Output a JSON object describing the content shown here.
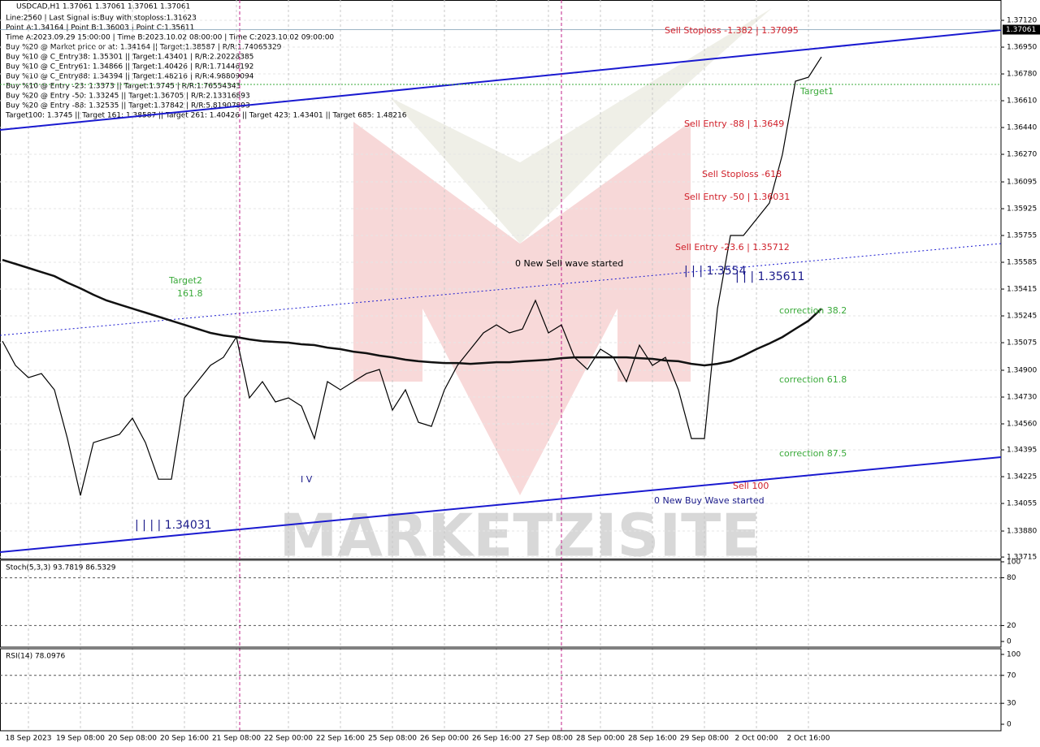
{
  "header": {
    "title": "USDCAD,H1  1.37061 1.37061 1.37061 1.37061",
    "info_lines": [
      "Line:2560 | Last Signal is:Buy with stoploss:1.31623",
      "Point A:1.34164 | Point B:1.36003 | Point C:1.35611",
      "Time A:2023.09.29 15:00:00 | Time B:2023.10.02 08:00:00 | Time C:2023.10.02 09:00:00",
      "Buy %20 @ Market price or at: 1.34164 || Target:1.38587 | R/R:1.74065329",
      "Buy %10 @ C_Entry38: 1.35301 || Target:1.43401 | R/R:2.20228385",
      "Buy %10 @ C_Entry61: 1.34866 || Target:1.40426 | R/R:1.71446192",
      "Buy %10 @ C_Entry88: 1.34394 || Target:1.48216 | R/R:4.98809094",
      "Buy %10 @ Entry -23: 1.3373 || Target:1.3745 | R/R:1.76554343",
      "Buy %20 @ Entry -50: 1.33245 || Target:1.36705 | R/R:2.13316893",
      "Buy %20 @ Entry -88: 1.32535 || Target:1.37842 | R/R:5.81907893",
      "Target100: 1.3745 || Target 161: 1.38587 || Target 261: 1.40426 || Target 423: 1.43401 || Target 685: 1.48216"
    ]
  },
  "watermark": "MARKETZISITE",
  "chart_data": {
    "type": "line",
    "categories": [
      null,
      null,
      "18 Sep 2023",
      null,
      null,
      null,
      "19 Sep 08:00",
      null,
      null,
      null,
      "20 Sep 08:00",
      null,
      null,
      null,
      "20 Sep 16:00",
      null,
      null,
      null,
      "21 Sep 08:00",
      null,
      null,
      null,
      "22 Sep 00:00",
      null,
      null,
      null,
      "22 Sep 16:00",
      null,
      null,
      null,
      "25 Sep 08:00",
      null,
      null,
      null,
      "26 Sep 00:00",
      null,
      null,
      null,
      "26 Sep 16:00",
      null,
      null,
      null,
      "27 Sep 08:00",
      null,
      null,
      null,
      "28 Sep 00:00",
      null,
      null,
      null,
      "28 Sep 16:00",
      null,
      null,
      null,
      "29 Sep 08:00",
      null,
      null,
      null,
      "2 Oct 00:00",
      null,
      null,
      null,
      "2 Oct 16:00",
      null
    ],
    "series": [
      {
        "color": "#000000",
        "values": [
          1.35085,
          1.34931,
          1.34853,
          1.34879,
          1.34776,
          1.34467,
          1.34106,
          1.34441,
          1.34467,
          1.34493,
          1.34596,
          1.34441,
          1.34209,
          1.34209,
          1.34725,
          1.34828,
          1.34931,
          1.34982,
          1.35111,
          1.34725,
          1.34828,
          1.34699,
          1.34725,
          1.34673,
          1.34467,
          1.34828,
          1.34776,
          1.34828,
          1.34879,
          1.34905,
          1.34647,
          1.34776,
          1.3457,
          1.34544,
          1.34776,
          1.34931,
          1.35034,
          1.35137,
          1.35188,
          1.35137,
          1.35162,
          1.35343,
          1.35137,
          1.35188,
          1.34982,
          1.34905,
          1.35034,
          1.34982,
          1.34828,
          1.35059,
          1.34931,
          1.34982,
          1.34776,
          1.34467,
          1.34467,
          1.35291,
          1.35755,
          1.35755,
          1.35858,
          1.35961,
          1.3627,
          1.36734,
          1.36759,
          1.36888
        ]
      },
      {
        "color": "#111111",
        "values": [
          1.356,
          1.35575,
          1.35549,
          1.35523,
          1.35497,
          1.35456,
          1.3542,
          1.35379,
          1.35343,
          1.35317,
          1.35291,
          1.35266,
          1.3524,
          1.35214,
          1.35188,
          1.35163,
          1.35137,
          1.35121,
          1.35111,
          1.35096,
          1.35085,
          1.3508,
          1.35075,
          1.35065,
          1.3506,
          1.35044,
          1.35034,
          1.35018,
          1.35008,
          1.34993,
          1.34982,
          1.34967,
          1.34957,
          1.34951,
          1.34946,
          1.34946,
          1.34941,
          1.34946,
          1.34951,
          1.34951,
          1.34957,
          1.34962,
          1.34967,
          1.34977,
          1.34982,
          1.34982,
          1.34982,
          1.34982,
          1.34982,
          1.34977,
          1.34972,
          1.34962,
          1.34957,
          1.34941,
          1.34931,
          1.34941,
          1.34957,
          1.34993,
          1.35034,
          1.3507,
          1.35111,
          1.35163,
          1.35214,
          1.35291
        ]
      }
    ],
    "ylim": [
      1.33705,
      1.37249
    ],
    "yticks": [
      {
        "value": 1.3712,
        "label": "1.37120"
      },
      {
        "value": 1.3695,
        "label": "1.36950"
      },
      {
        "value": 1.3678,
        "label": "1.36780"
      },
      {
        "value": 1.3661,
        "label": "1.36610"
      },
      {
        "value": 1.3644,
        "label": "1.36440"
      },
      {
        "value": 1.3627,
        "label": "1.36270"
      },
      1.36095,
      1.35925,
      1.35755,
      1.35585,
      1.35415,
      1.35245,
      1.35075,
      {
        "value": 1.349,
        "label": "1.34900"
      },
      {
        "value": 1.3473,
        "label": "1.34730"
      },
      {
        "value": 1.3456,
        "label": "1.34560"
      },
      1.34395,
      1.34225,
      1.34055,
      {
        "value": 1.3388,
        "label": "1.33880"
      },
      1.33715
    ],
    "current_price": 1.37061,
    "grid": true,
    "annotations": [
      {
        "text": "Sell Stoploss -1.382 | 1.37095",
        "color": "#d0202a"
      },
      {
        "text": "Target1",
        "color": "#3aaa3a"
      },
      {
        "text": "Sell Entry -88 | 1.3649",
        "color": "#d0202a"
      },
      {
        "text": "Sell Stoploss -618",
        "color": "#d0202a"
      },
      {
        "text": "Sell Entry -50 | 1.36031",
        "color": "#d0202a"
      },
      {
        "text": "Sell Entry -23.6 | 1.35712",
        "color": "#d0202a"
      },
      {
        "text": "| | | 1.3554",
        "color": "#1a1a8a"
      },
      {
        "text": "| | | 1.35611",
        "color": "#1a1a8a"
      },
      {
        "text": "0 New Sell wave started",
        "color": "#000000"
      },
      {
        "text": "Target2",
        "color": "#3aaa3a"
      },
      {
        "text": "161.8",
        "color": "#3aaa3a"
      },
      {
        "text": "correction 38.2",
        "color": "#3aaa3a"
      },
      {
        "text": "correction 61.8",
        "color": "#3aaa3a"
      },
      {
        "text": "correction 87.5",
        "color": "#3aaa3a"
      },
      {
        "text": "Sell 100",
        "color": "#d0202a"
      },
      {
        "text": "0 New Buy Wave started",
        "color": "#1a1a8a"
      },
      {
        "text": "| | | | 1.34031",
        "color": "#1a1a8a"
      },
      {
        "text": "I V",
        "color": "#1a1a8a"
      }
    ]
  },
  "indicators": [
    {
      "name": "Stoch(5,3,3) 93.7819 86.5329",
      "ylim": [
        -7.1,
        102
      ],
      "yticks": [
        100,
        80,
        20,
        0
      ],
      "levels": [
        80,
        20
      ]
    },
    {
      "name": "RSI(14) 78.0976",
      "ylim": [
        -9.3,
        108.1
      ],
      "yticks": [
        100,
        70,
        30,
        0
      ],
      "levels": [
        70,
        30
      ]
    }
  ]
}
